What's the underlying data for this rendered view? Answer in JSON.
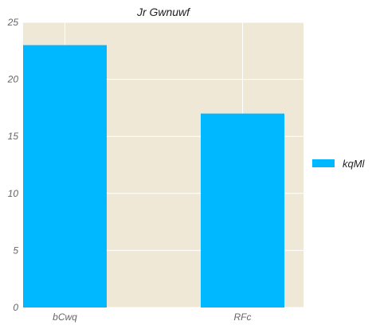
{
  "chart_data": {
    "type": "bar",
    "title": "Jr Gwnuwf",
    "categories": [
      "bCwq",
      "RFc"
    ],
    "series": [
      {
        "name": "kqMl",
        "values": [
          23,
          17
        ],
        "color": "#00b8ff"
      }
    ],
    "xlabel": "",
    "ylabel": "",
    "ylim": [
      0,
      25
    ],
    "yticks": [
      "0",
      "5",
      "10",
      "15",
      "20",
      "25"
    ],
    "grid": true,
    "legend_position": "right",
    "background_color": "#efe8d6",
    "grid_color": "#ffffff"
  }
}
